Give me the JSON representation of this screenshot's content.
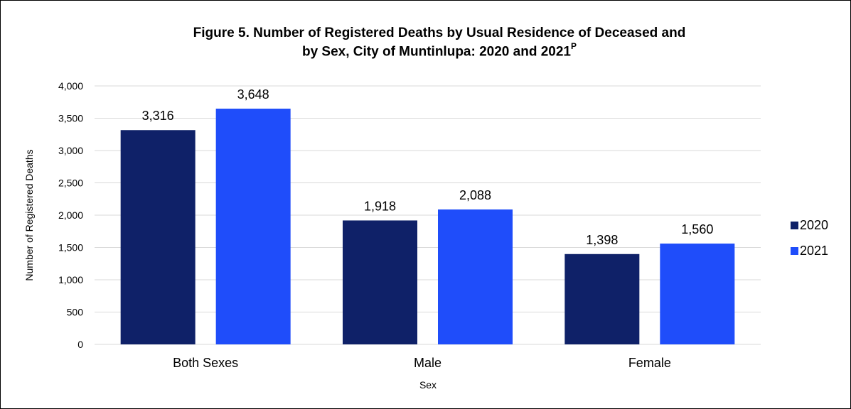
{
  "title": "Figure 5. Number of Registered Deaths by Usual Residence of Deceased and by Sex, City of Muntinlupa: 2020 and 2021",
  "title_line1": "Figure 5. Number of Registered Deaths by Usual Residence of Deceased and",
  "title_line2": "by Sex, City of Muntinlupa: 2020 and 2021",
  "title_superscript": "P",
  "chart_data": {
    "type": "bar",
    "title": "Figure 5. Number of Registered Deaths by Usual Residence of Deceased and by Sex, City of Muntinlupa: 2020 and 2021P",
    "categories": [
      "Both Sexes",
      "Male",
      "Female"
    ],
    "series": [
      {
        "name": "2020",
        "values": [
          3316,
          1918,
          1398
        ],
        "color": "#0f2168"
      },
      {
        "name": "2021",
        "values": [
          3648,
          2088,
          1560
        ],
        "color": "#1f4dfa"
      }
    ],
    "data_labels": [
      [
        "3,316",
        "1,918",
        "1,398"
      ],
      [
        "3,648",
        "2,088",
        "1,560"
      ]
    ],
    "xlabel": "Sex",
    "ylabel": "Number of Registered Deaths",
    "ylim": [
      0,
      4000
    ],
    "yticks": [
      0,
      500,
      1000,
      1500,
      2000,
      2500,
      3000,
      3500,
      4000
    ],
    "ytick_labels": [
      "0",
      "500",
      "1,000",
      "1,500",
      "2,000",
      "2,500",
      "3,000",
      "3,500",
      "4,000"
    ],
    "grid": true,
    "gridline_color": "#d9d9d9",
    "legend_position": "right"
  }
}
